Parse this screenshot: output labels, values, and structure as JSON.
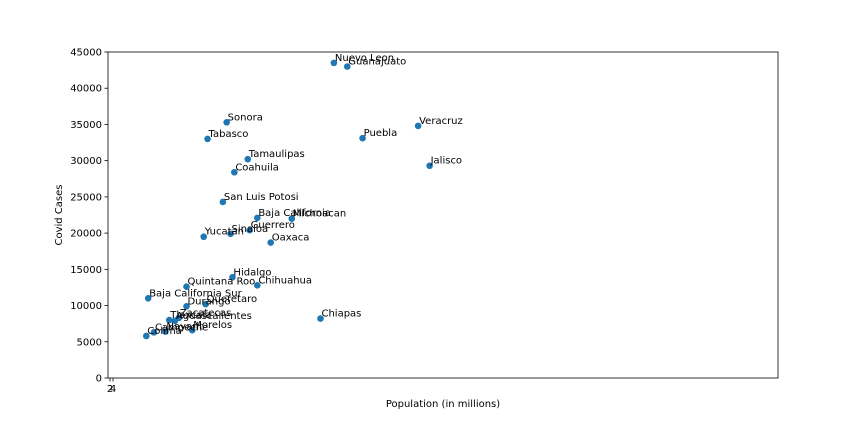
{
  "chart_data": {
    "type": "scatter",
    "title": "",
    "xlabel": "Population (in millions)",
    "ylabel": "Covid Cases",
    "xlim": [
      -0.3,
      17.2
    ],
    "ylim": [
      0,
      45000
    ],
    "yticks": [
      0,
      5000,
      10000,
      15000,
      20000,
      25000,
      30000,
      35000,
      40000,
      45000
    ],
    "xtick_labels_overlapping": [
      "2",
      "4"
    ],
    "grid": false,
    "color": "#1f77b4",
    "points": [
      {
        "name": "Nuevo Leon",
        "x": 5.6,
        "y": 43500
      },
      {
        "name": "Guanajuato",
        "x": 5.95,
        "y": 43000
      },
      {
        "name": "Veracruz",
        "x": 7.8,
        "y": 34800
      },
      {
        "name": "Sonora",
        "x": 2.8,
        "y": 35300
      },
      {
        "name": "Puebla",
        "x": 6.35,
        "y": 33100
      },
      {
        "name": "Tabasco",
        "x": 2.3,
        "y": 33000
      },
      {
        "name": "Tamaulipas",
        "x": 3.35,
        "y": 30200
      },
      {
        "name": "Jalisco",
        "x": 8.1,
        "y": 29300
      },
      {
        "name": "Coahuila",
        "x": 3.0,
        "y": 28400
      },
      {
        "name": "San Luis Potosi",
        "x": 2.7,
        "y": 24300
      },
      {
        "name": "Baja California",
        "x": 3.6,
        "y": 22100
      },
      {
        "name": "Michoacan",
        "x": 4.5,
        "y": 22000
      },
      {
        "name": "Guerrero",
        "x": 3.4,
        "y": 20400
      },
      {
        "name": "Sinaloa",
        "x": 2.9,
        "y": 19900
      },
      {
        "name": "Yucatan",
        "x": 2.2,
        "y": 19500
      },
      {
        "name": "Oaxaca",
        "x": 3.95,
        "y": 18700
      },
      {
        "name": "Hidalgo",
        "x": 2.95,
        "y": 13900
      },
      {
        "name": "Chihuahua",
        "x": 3.6,
        "y": 12800
      },
      {
        "name": "Quintana Roo",
        "x": 1.75,
        "y": 12600
      },
      {
        "name": "Baja California Sur",
        "x": 0.75,
        "y": 11000
      },
      {
        "name": "Durango",
        "x": 1.75,
        "y": 9900
      },
      {
        "name": "Queretaro",
        "x": 2.25,
        "y": 10200
      },
      {
        "name": "Chiapas",
        "x": 5.25,
        "y": 8200
      },
      {
        "name": "Zacatecas",
        "x": 1.55,
        "y": 8300
      },
      {
        "name": "Tlaxcala",
        "x": 1.3,
        "y": 8000
      },
      {
        "name": "Aguascalientes",
        "x": 1.45,
        "y": 7900
      },
      {
        "name": "Nayarit",
        "x": 1.2,
        "y": 6400
      },
      {
        "name": "Morelos",
        "x": 1.9,
        "y": 6600
      },
      {
        "name": "Campeche",
        "x": 0.9,
        "y": 6300
      },
      {
        "name": "Colima",
        "x": 0.7,
        "y": 5800
      }
    ]
  }
}
